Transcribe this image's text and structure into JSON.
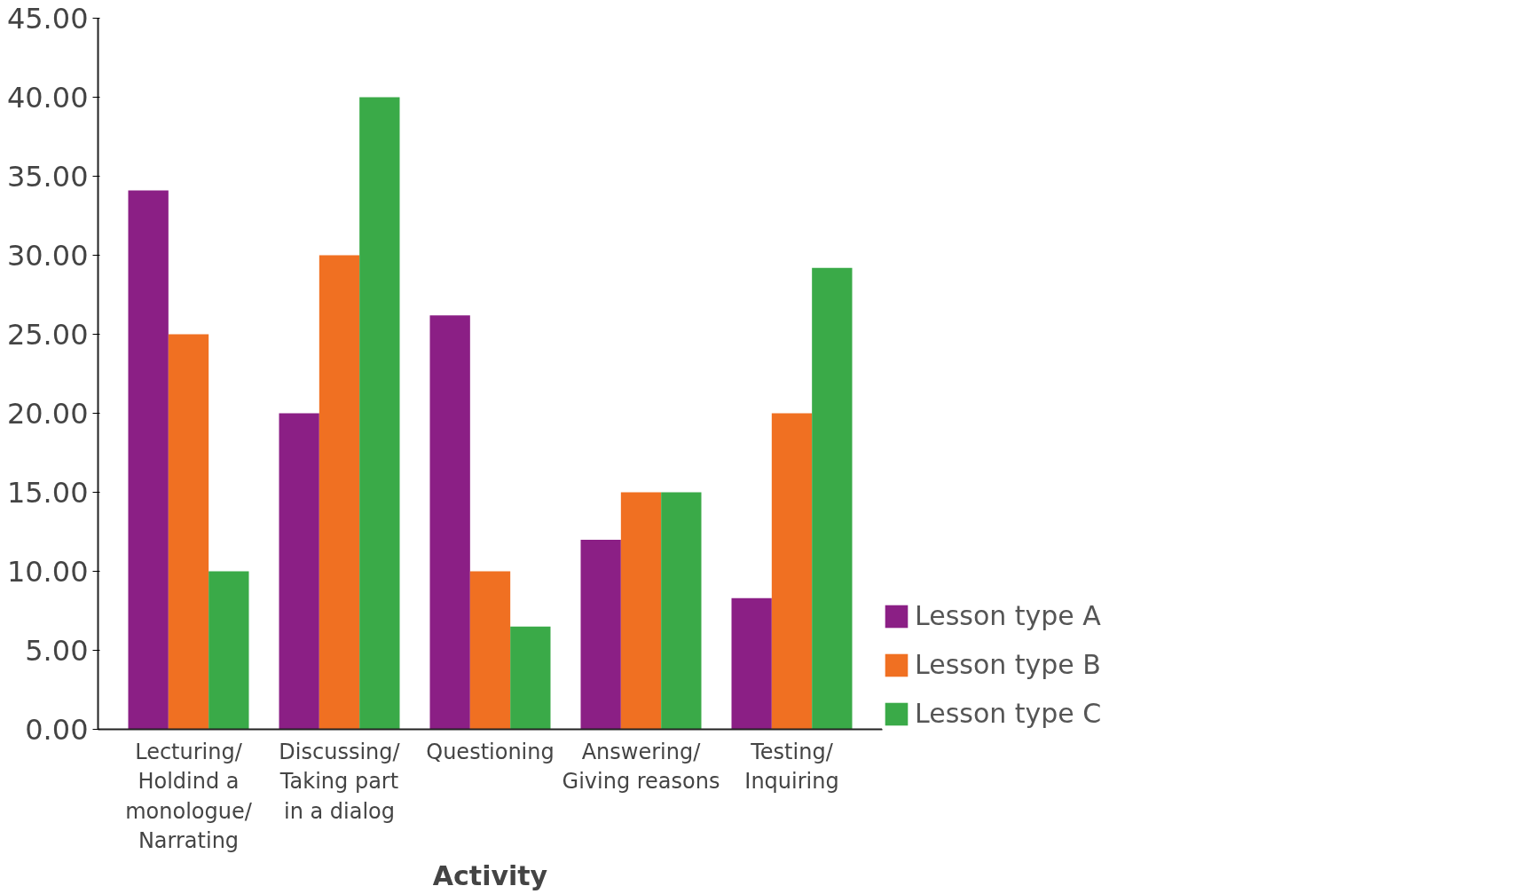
{
  "chart_data": {
    "type": "bar",
    "xlabel": "Activity",
    "categories": [
      "Lecturing/\nHoldind a\nmonologue/\nNarrating",
      "Discussing/\nTaking part\nin a dialog",
      "Questioning",
      "Answering/\nGiving reasons",
      "Testing/\nInquiring"
    ],
    "series": [
      {
        "name": "Lesson type A",
        "color": "#8b1f85",
        "values": [
          34.1,
          20,
          26.2,
          12,
          8.3
        ]
      },
      {
        "name": "Lesson type B",
        "color": "#f07022",
        "values": [
          25,
          30,
          10,
          15,
          20
        ]
      },
      {
        "name": "Lesson type C",
        "color": "#3aaa48",
        "values": [
          10,
          40,
          6.5,
          15,
          29.2
        ]
      }
    ],
    "ylim": [
      0,
      45
    ],
    "yticks": [
      {
        "value": 0,
        "label": "0.00"
      },
      {
        "value": 5,
        "label": "5.00"
      },
      {
        "value": 10,
        "label": "10.00"
      },
      {
        "value": 15,
        "label": "15.00"
      },
      {
        "value": 20,
        "label": "20.00"
      },
      {
        "value": 25,
        "label": "25.00"
      },
      {
        "value": 30,
        "label": "30.00"
      },
      {
        "value": 35,
        "label": "35.00"
      },
      {
        "value": 40,
        "label": "40.00"
      },
      {
        "value": 45,
        "label": "45.00"
      }
    ],
    "grid": false,
    "legend": "bottom right"
  }
}
